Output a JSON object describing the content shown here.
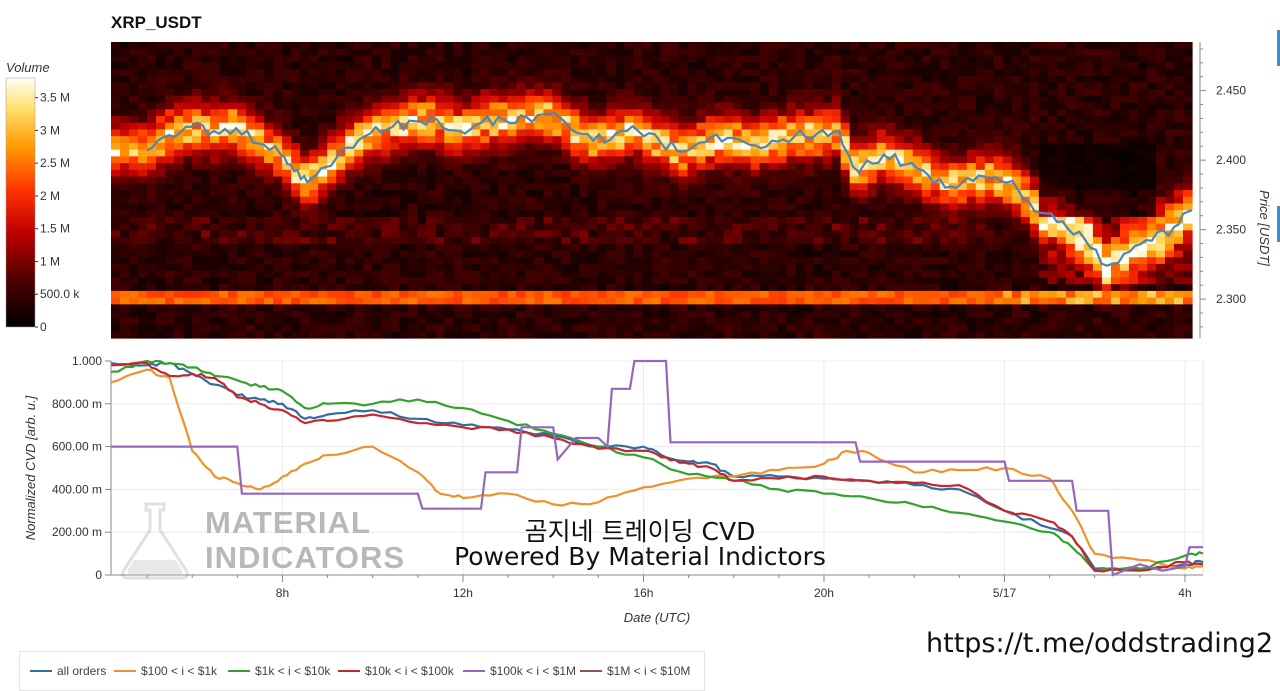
{
  "title": "XRP_USDT",
  "overlay": {
    "line1": "곰지네 트레이딩 CVD",
    "line2": "Powered By Material Indictors"
  },
  "watermark": {
    "line1": "MATERIAL",
    "line2": "INDICATORS"
  },
  "link": "https://t.me/oddstrading2",
  "colorbar": {
    "title": "Volume",
    "ticks": [
      {
        "label": "3.5 M",
        "v": 3.5
      },
      {
        "label": "3 M",
        "v": 3.0
      },
      {
        "label": "2.5 M",
        "v": 2.5
      },
      {
        "label": "2 M",
        "v": 2.0
      },
      {
        "label": "1.5 M",
        "v": 1.5
      },
      {
        "label": "1 M",
        "v": 1.0
      },
      {
        "label": "500.0 k",
        "v": 0.5
      },
      {
        "label": "0",
        "v": 0
      }
    ],
    "max": 3.8
  },
  "colors": {
    "all_orders": "#2f6fa0",
    "s100_1k": "#f0922b",
    "s1k_10k": "#35a02f",
    "s10k_100k": "#c4282d",
    "s100k_1m": "#9467bd",
    "s1m_10m": "#8c564b",
    "price_line": "#4a86b8"
  },
  "chart_data": [
    {
      "type": "heatmap",
      "title": "XRP_USDT",
      "ylabel": "Price [USDT]",
      "ylim": [
        2.272,
        2.485
      ],
      "yticks": [
        2.3,
        2.35,
        2.4,
        2.45
      ],
      "ytick_labels": [
        "2.300",
        "2.350",
        "2.400",
        "2.450"
      ],
      "colorbar_label": "Volume",
      "price_line": {
        "hours": [
          5.0,
          5.5,
          6.0,
          6.5,
          7.0,
          7.5,
          8.0,
          8.3,
          8.6,
          9.0,
          9.5,
          10.0,
          10.5,
          11.0,
          11.5,
          12.0,
          12.5,
          13.0,
          13.5,
          14.0,
          14.5,
          15.0,
          15.5,
          16.0,
          16.5,
          17.0,
          17.5,
          18.0,
          18.5,
          19.0,
          19.5,
          20.0,
          20.5,
          20.8,
          21.0,
          21.5,
          22.0,
          22.5,
          23.0,
          23.5,
          24.0,
          24.5,
          25.0,
          25.5,
          26.0,
          26.5,
          27.0,
          27.5,
          28.0,
          28.4
        ],
        "price": [
          2.407,
          2.418,
          2.424,
          2.421,
          2.423,
          2.412,
          2.404,
          2.392,
          2.384,
          2.395,
          2.409,
          2.419,
          2.424,
          2.428,
          2.429,
          2.421,
          2.427,
          2.429,
          2.431,
          2.433,
          2.422,
          2.414,
          2.419,
          2.421,
          2.413,
          2.406,
          2.413,
          2.416,
          2.411,
          2.414,
          2.417,
          2.419,
          2.421,
          2.396,
          2.394,
          2.404,
          2.397,
          2.389,
          2.381,
          2.385,
          2.388,
          2.379,
          2.362,
          2.356,
          2.343,
          2.324,
          2.334,
          2.342,
          2.352,
          2.364
        ]
      }
    },
    {
      "type": "line",
      "xlabel": "Date (UTC)",
      "ylabel": "Normalized CVD [arb. u.]",
      "ylim": [
        0,
        1
      ],
      "yticks": [
        0,
        0.2,
        0.4,
        0.6,
        0.8,
        1.0
      ],
      "ytick_labels": [
        "0",
        "200.00 m",
        "400.00 m",
        "600.00 m",
        "800.00 m",
        "1.000"
      ],
      "xlim": [
        4.2,
        28.4
      ],
      "xticks": [
        8,
        12,
        16,
        20,
        24,
        28
      ],
      "xtick_labels": [
        "8h",
        "12h",
        "16h",
        "20h",
        "5/17",
        "4h"
      ],
      "series": [
        {
          "name": "all orders",
          "key": "all_orders",
          "x": [
            4.2,
            5,
            5.5,
            6,
            7,
            7.5,
            8,
            8.5,
            9,
            10,
            11,
            12,
            13,
            14,
            15,
            16,
            16.5,
            17,
            17.5,
            18,
            19,
            20,
            21,
            22,
            23,
            24,
            25,
            25.5,
            26,
            27,
            28,
            28.4
          ],
          "y": [
            0.99,
            0.98,
            0.99,
            0.94,
            0.84,
            0.82,
            0.8,
            0.73,
            0.75,
            0.77,
            0.73,
            0.7,
            0.68,
            0.65,
            0.6,
            0.6,
            0.55,
            0.53,
            0.52,
            0.46,
            0.46,
            0.45,
            0.44,
            0.42,
            0.4,
            0.3,
            0.22,
            0.18,
            0.03,
            0.03,
            0.05,
            0.06
          ]
        },
        {
          "name": "$100 < i < $1k",
          "key": "s100_1k",
          "x": [
            4.2,
            5,
            5.5,
            6,
            6.5,
            7,
            7.5,
            8,
            8.5,
            9,
            10,
            11,
            11.5,
            12,
            13,
            14,
            15,
            16,
            17,
            18,
            19,
            20,
            20.5,
            21,
            22,
            23,
            24,
            25,
            25.5,
            26,
            27,
            28,
            28.4
          ],
          "y": [
            0.9,
            0.96,
            0.92,
            0.58,
            0.46,
            0.43,
            0.4,
            0.46,
            0.52,
            0.56,
            0.6,
            0.48,
            0.38,
            0.36,
            0.38,
            0.33,
            0.34,
            0.41,
            0.45,
            0.46,
            0.49,
            0.52,
            0.58,
            0.57,
            0.48,
            0.49,
            0.5,
            0.45,
            0.3,
            0.1,
            0.07,
            0.03,
            0.04
          ]
        },
        {
          "name": "$1k < i < $10k",
          "key": "s1k_10k",
          "x": [
            4.2,
            5,
            5.5,
            6,
            6.5,
            7,
            7.5,
            8,
            8.5,
            9,
            10,
            11,
            12,
            13,
            14,
            15,
            16,
            17,
            18,
            19,
            20,
            21,
            22,
            23,
            24,
            25,
            25.5,
            26,
            27,
            28,
            28.4
          ],
          "y": [
            0.95,
            1.0,
            0.99,
            0.97,
            0.93,
            0.91,
            0.88,
            0.86,
            0.78,
            0.8,
            0.8,
            0.82,
            0.78,
            0.72,
            0.66,
            0.6,
            0.55,
            0.47,
            0.44,
            0.4,
            0.38,
            0.36,
            0.33,
            0.29,
            0.25,
            0.2,
            0.13,
            0.02,
            0.03,
            0.09,
            0.1
          ]
        },
        {
          "name": "$10k < i < $100k",
          "key": "s10k_100k",
          "x": [
            4.2,
            5,
            5.5,
            6,
            6.5,
            7,
            7.5,
            8,
            8.5,
            9,
            10,
            11,
            12,
            13,
            14,
            15,
            16,
            16.5,
            17,
            17.5,
            18,
            19,
            20,
            21,
            22,
            23,
            24,
            25,
            25.5,
            26,
            27,
            28,
            28.4
          ],
          "y": [
            0.98,
            0.99,
            0.93,
            0.94,
            0.92,
            0.83,
            0.8,
            0.77,
            0.71,
            0.72,
            0.75,
            0.71,
            0.69,
            0.68,
            0.64,
            0.59,
            0.58,
            0.55,
            0.52,
            0.5,
            0.44,
            0.45,
            0.46,
            0.44,
            0.43,
            0.42,
            0.3,
            0.25,
            0.18,
            0.02,
            0.02,
            0.06,
            0.05
          ]
        },
        {
          "name": "$100k < i < $1M",
          "key": "s100k_1m",
          "x": [
            4.2,
            7,
            7.1,
            11,
            11.1,
            12.4,
            12.5,
            13.2,
            13.3,
            14,
            14.1,
            14.5,
            15,
            15.2,
            15.3,
            15.7,
            15.8,
            16.5,
            16.6,
            20.7,
            20.8,
            24,
            24.1,
            25.5,
            25.6,
            26.3,
            26.4,
            27,
            27.5,
            28,
            28.1,
            28.4
          ],
          "y": [
            0.6,
            0.6,
            0.38,
            0.38,
            0.31,
            0.31,
            0.48,
            0.48,
            0.69,
            0.69,
            0.54,
            0.64,
            0.64,
            0.6,
            0.87,
            0.87,
            1.0,
            1.0,
            0.62,
            0.62,
            0.53,
            0.53,
            0.44,
            0.44,
            0.3,
            0.3,
            0.0,
            0.05,
            0.02,
            0.04,
            0.13,
            0.13
          ]
        },
        {
          "name": "$1M < i < $10M",
          "key": "s1m_10m",
          "x": [],
          "y": []
        }
      ]
    }
  ]
}
